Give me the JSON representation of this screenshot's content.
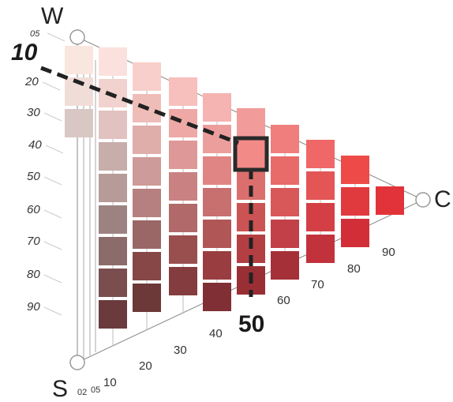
{
  "axes": {
    "white_label": "W",
    "black_label": "S",
    "chroma_label": "C"
  },
  "blackness_ticks": [
    "05",
    "20",
    "30",
    "40",
    "50",
    "60",
    "70",
    "80",
    "90"
  ],
  "chromaticness_ticks_bottom": [
    "02",
    "05",
    "10",
    "20",
    "30",
    "40"
  ],
  "chromaticness_ticks_diagonal": [
    "60",
    "70",
    "80",
    "90"
  ],
  "highlight": {
    "blackness_label": "10",
    "chromaticness_label": "50"
  },
  "colors": {
    "highlight_border": "#2a2a2a",
    "axis_line": "#888888",
    "tick_text": "#333333"
  },
  "swatches": [
    [
      "#f8e6df",
      "#f1ddd8",
      "#d9c7c4"
    ],
    [
      "#fbe1dd",
      "#f2d2ce",
      "#e2c2c0",
      "#c7aeab",
      "#b69b99",
      "#9c8381",
      "#8b6c6a",
      "#7a4e4f",
      "#6a3a3d"
    ],
    [
      "#f8cfca",
      "#efbdb8",
      "#dfaeab",
      "#cd9b99",
      "#b5807f",
      "#9a6766",
      "#864746",
      "#6c3838"
    ],
    [
      "#f7c0bd",
      "#eea9a6",
      "#de9897",
      "#c98281",
      "#b16969",
      "#9a4f4f",
      "#843c3f"
    ],
    [
      "#f5b3b1",
      "#ec9e9d",
      "#e18584",
      "#c86f70",
      "#b15656",
      "#9a3d40",
      "#803034"
    ],
    [
      "#f19b9b",
      "#f28a88",
      "#db6f6e",
      "#cc5353",
      "#b33f43",
      "#992f35"
    ],
    [
      "#ef7e7c",
      "#e86b6a",
      "#d8585a",
      "#c24048",
      "#a63038"
    ],
    [
      "#ef6767",
      "#e45556",
      "#d43f45",
      "#c2323c"
    ],
    [
      "#ee4b48",
      "#e03a3e",
      "#d22e38"
    ],
    [
      "#e3333a"
    ]
  ]
}
